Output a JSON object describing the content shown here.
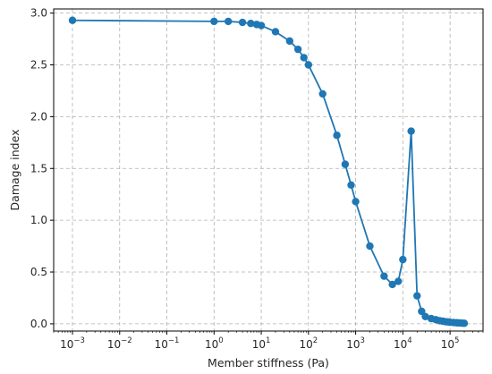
{
  "chart_data": {
    "type": "line",
    "title": "",
    "xlabel": "Member stiffness (Pa)",
    "ylabel": "Damage index",
    "xscale": "log",
    "xlim": [
      0.0004,
      500000
    ],
    "ylim": [
      -0.07,
      3.04
    ],
    "grid": true,
    "grid_style": "dashed",
    "legend": "none",
    "x_ticks": [
      {
        "value": 0.001,
        "base": "10",
        "exp": "−3"
      },
      {
        "value": 0.01,
        "base": "10",
        "exp": "−2"
      },
      {
        "value": 0.1,
        "base": "10",
        "exp": "−1"
      },
      {
        "value": 1,
        "base": "10",
        "exp": "0"
      },
      {
        "value": 10,
        "base": "10",
        "exp": "1"
      },
      {
        "value": 100,
        "base": "10",
        "exp": "2"
      },
      {
        "value": 1000,
        "base": "10",
        "exp": "3"
      },
      {
        "value": 10000,
        "base": "10",
        "exp": "4"
      },
      {
        "value": 100000,
        "base": "10",
        "exp": "5"
      }
    ],
    "y_ticks": [
      "0.0",
      "0.5",
      "1.0",
      "1.5",
      "2.0",
      "2.5",
      "3.0"
    ],
    "series": [
      {
        "color": "#1f77b4",
        "marker": "circle",
        "x": [
          0.001,
          1,
          2,
          4,
          6,
          8,
          10,
          20,
          40,
          60,
          80,
          100,
          200,
          400,
          600,
          800,
          1000,
          2000,
          4000,
          6000,
          8000,
          10000,
          15000,
          20000,
          25000,
          30000,
          40000,
          50000,
          60000,
          70000,
          80000,
          90000,
          100000,
          120000,
          140000,
          160000,
          180000,
          200000
        ],
        "y": [
          2.93,
          2.92,
          2.92,
          2.91,
          2.9,
          2.89,
          2.88,
          2.82,
          2.73,
          2.65,
          2.57,
          2.5,
          2.22,
          1.82,
          1.54,
          1.34,
          1.18,
          0.75,
          0.46,
          0.38,
          0.41,
          0.62,
          1.86,
          0.27,
          0.12,
          0.07,
          0.05,
          0.04,
          0.03,
          0.025,
          0.02,
          0.018,
          0.015,
          0.012,
          0.01,
          0.008,
          0.006,
          0.005
        ]
      }
    ]
  }
}
